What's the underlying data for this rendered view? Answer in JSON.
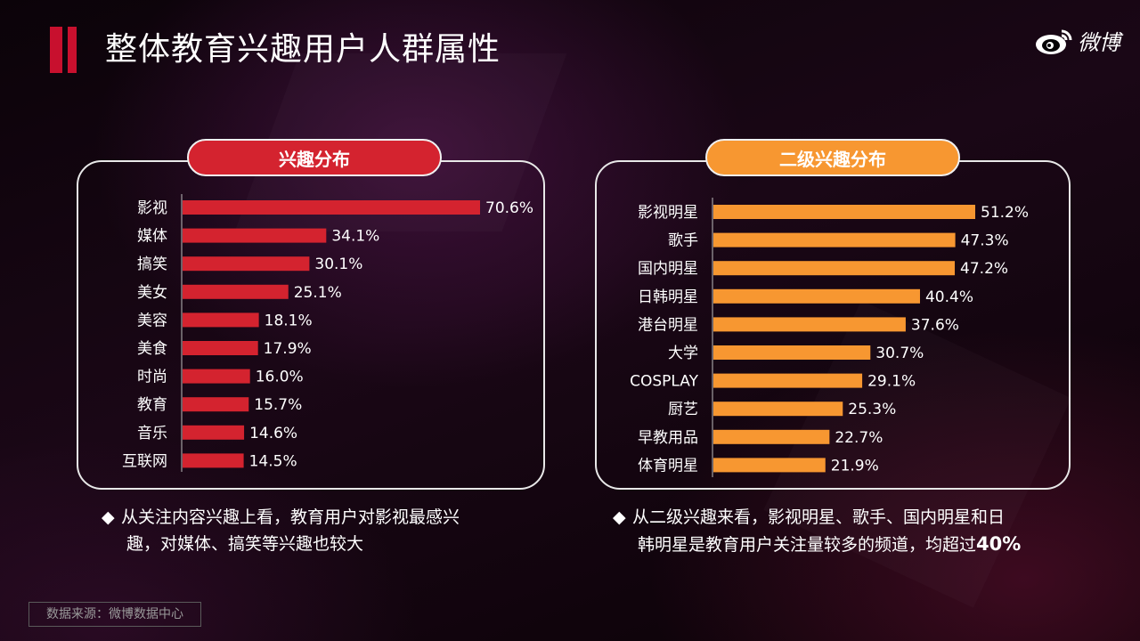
{
  "page": {
    "title": "整体教育兴趣用户人群属性",
    "logo_text": "微博",
    "source": "数据来源：微博数据中心"
  },
  "colors": {
    "accent_red": "#d4232f",
    "accent_orange": "#f79731"
  },
  "chart_data": [
    {
      "type": "bar",
      "orientation": "horizontal",
      "title": "兴趣分布",
      "categories": [
        "影视",
        "媒体",
        "搞笑",
        "美女",
        "美容",
        "美食",
        "时尚",
        "教育",
        "音乐",
        "互联网"
      ],
      "values": [
        70.6,
        34.1,
        30.1,
        25.1,
        18.1,
        17.9,
        16.0,
        15.7,
        14.6,
        14.5
      ],
      "value_labels": [
        "70.6%",
        "34.1%",
        "30.1%",
        "25.1%",
        "18.1%",
        "17.9%",
        "16.0%",
        "15.7%",
        "14.6%",
        "14.5%"
      ],
      "color": "#d4232f",
      "xlim": [
        0,
        70.6
      ],
      "grid": false
    },
    {
      "type": "bar",
      "orientation": "horizontal",
      "title": "二级兴趣分布",
      "categories": [
        "影视明星",
        "歌手",
        "国内明星",
        "日韩明星",
        "港台明星",
        "大学",
        "COSPLAY",
        "厨艺",
        "早教用品",
        "体育明星"
      ],
      "values": [
        51.2,
        47.3,
        47.2,
        40.4,
        37.6,
        30.7,
        29.1,
        25.3,
        22.7,
        21.9
      ],
      "value_labels": [
        "51.2%",
        "47.3%",
        "47.2%",
        "40.4%",
        "37.6%",
        "30.7%",
        "29.1%",
        "25.3%",
        "22.7%",
        "21.9%"
      ],
      "color": "#f79731",
      "xlim": [
        0,
        51.2
      ],
      "grid": false
    }
  ],
  "notes": {
    "left_line1": "从关注内容兴趣上看，教育用户对影视最感兴",
    "left_line2": "趣，对媒体、搞笑等兴趣也较大",
    "right_line1": "从二级兴趣来看，影视明星、歌手、国内明星和日",
    "right_line2": "韩明星是教育用户关注量较多的频道，均超过",
    "right_emph": "40%"
  }
}
